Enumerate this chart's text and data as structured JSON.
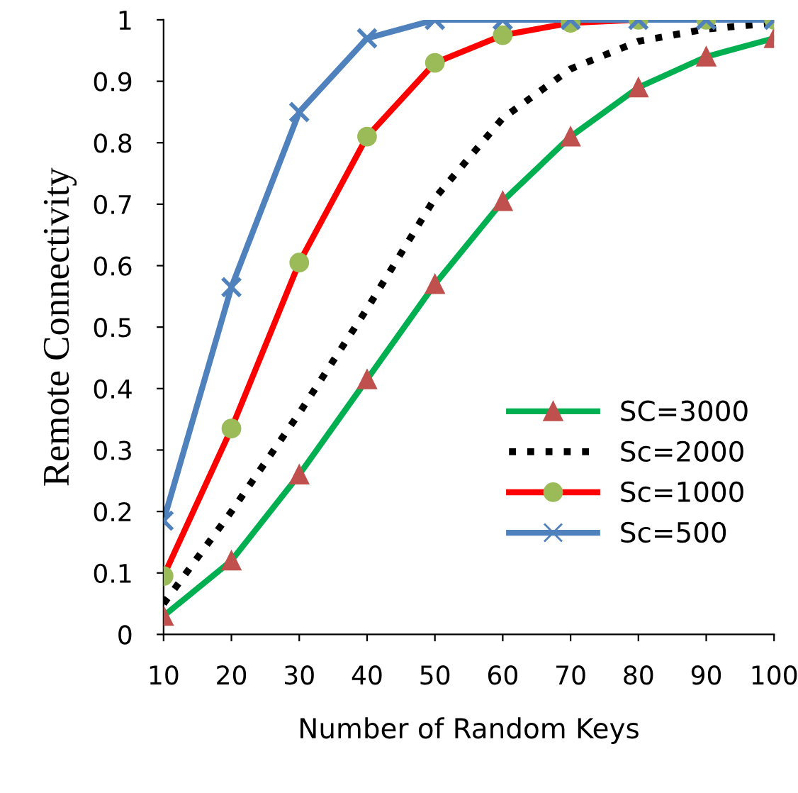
{
  "chart_data": {
    "type": "line",
    "xlabel": "Number of Random Keys",
    "ylabel": "Remote Connectivity",
    "x": [
      10,
      20,
      30,
      40,
      50,
      60,
      70,
      80,
      90,
      100
    ],
    "series": [
      {
        "name": "SC=3000",
        "color": "#00b050",
        "marker": "triangle",
        "line_style": "solid",
        "colors": [
          "#c0504d",
          "#c0504d",
          "#c0504d",
          "#c0504d",
          "#c0504d",
          "#c0504d",
          "#c0504d",
          "#c0504d",
          "#c0504d",
          "#c0504d"
        ],
        "values": [
          0.03,
          0.12,
          0.26,
          0.415,
          0.57,
          0.705,
          0.81,
          0.89,
          0.94,
          0.97
        ]
      },
      {
        "name": "Sc=2000",
        "color": "#000000",
        "marker": "none",
        "line_style": "dotted",
        "values": [
          0.05,
          0.2,
          0.36,
          0.53,
          0.71,
          0.84,
          0.92,
          0.965,
          0.985,
          0.995
        ]
      },
      {
        "name": "Sc=1000",
        "color": "#ff0000",
        "marker": "circle",
        "line_style": "solid",
        "colors": [
          "#9bbb59",
          "#9bbb59",
          "#9bbb59",
          "#9bbb59",
          "#9bbb59",
          "#9bbb59",
          "#9bbb59",
          "#9bbb59",
          "#9bbb59",
          "#9bbb59"
        ],
        "values": [
          0.095,
          0.335,
          0.605,
          0.81,
          0.93,
          0.975,
          0.995,
          1,
          1,
          1
        ]
      },
      {
        "name": "Sc=500",
        "color": "#4f81bd",
        "marker": "cross",
        "line_style": "solid",
        "values": [
          0.185,
          0.565,
          0.85,
          0.97,
          1,
          1,
          1,
          1,
          1,
          1
        ]
      }
    ],
    "xlim": [
      10,
      100
    ],
    "xticks": [
      10,
      20,
      30,
      40,
      50,
      60,
      70,
      80,
      90,
      100
    ],
    "ylim": [
      0,
      1
    ],
    "yticks": [
      0,
      0.1,
      0.2,
      0.3,
      0.4,
      0.5,
      0.6,
      0.7,
      0.8,
      0.9,
      1
    ],
    "grid": false,
    "legend": "bottom right"
  }
}
